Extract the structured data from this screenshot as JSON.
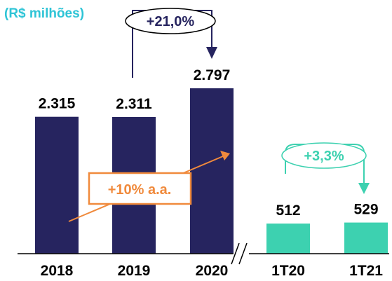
{
  "chart_data": {
    "type": "bar",
    "title": "",
    "unit_label": "(R$ milhões)",
    "categories": [
      "2018",
      "2019",
      "2020",
      "1T20",
      "1T21"
    ],
    "values": [
      2315,
      2311,
      2797,
      512,
      529
    ],
    "value_labels": [
      "2.315",
      "2.311",
      "2.797",
      "512",
      "529"
    ],
    "bar_colors": [
      "#26245f",
      "#26245f",
      "#26245f",
      "#3dd1b0",
      "#3dd1b0"
    ],
    "axis_break_between": [
      "2020",
      "1T20"
    ],
    "annotations": {
      "growth_2019_2020": "+21,0%",
      "growth_1t20_1t21": "+3,3%",
      "cagr": "+10% a.a."
    },
    "colors": {
      "annual": "#26245f",
      "quarterly": "#3dd1b0",
      "cagr": "#f08a3c",
      "unit_label": "#2ec4d6"
    }
  }
}
